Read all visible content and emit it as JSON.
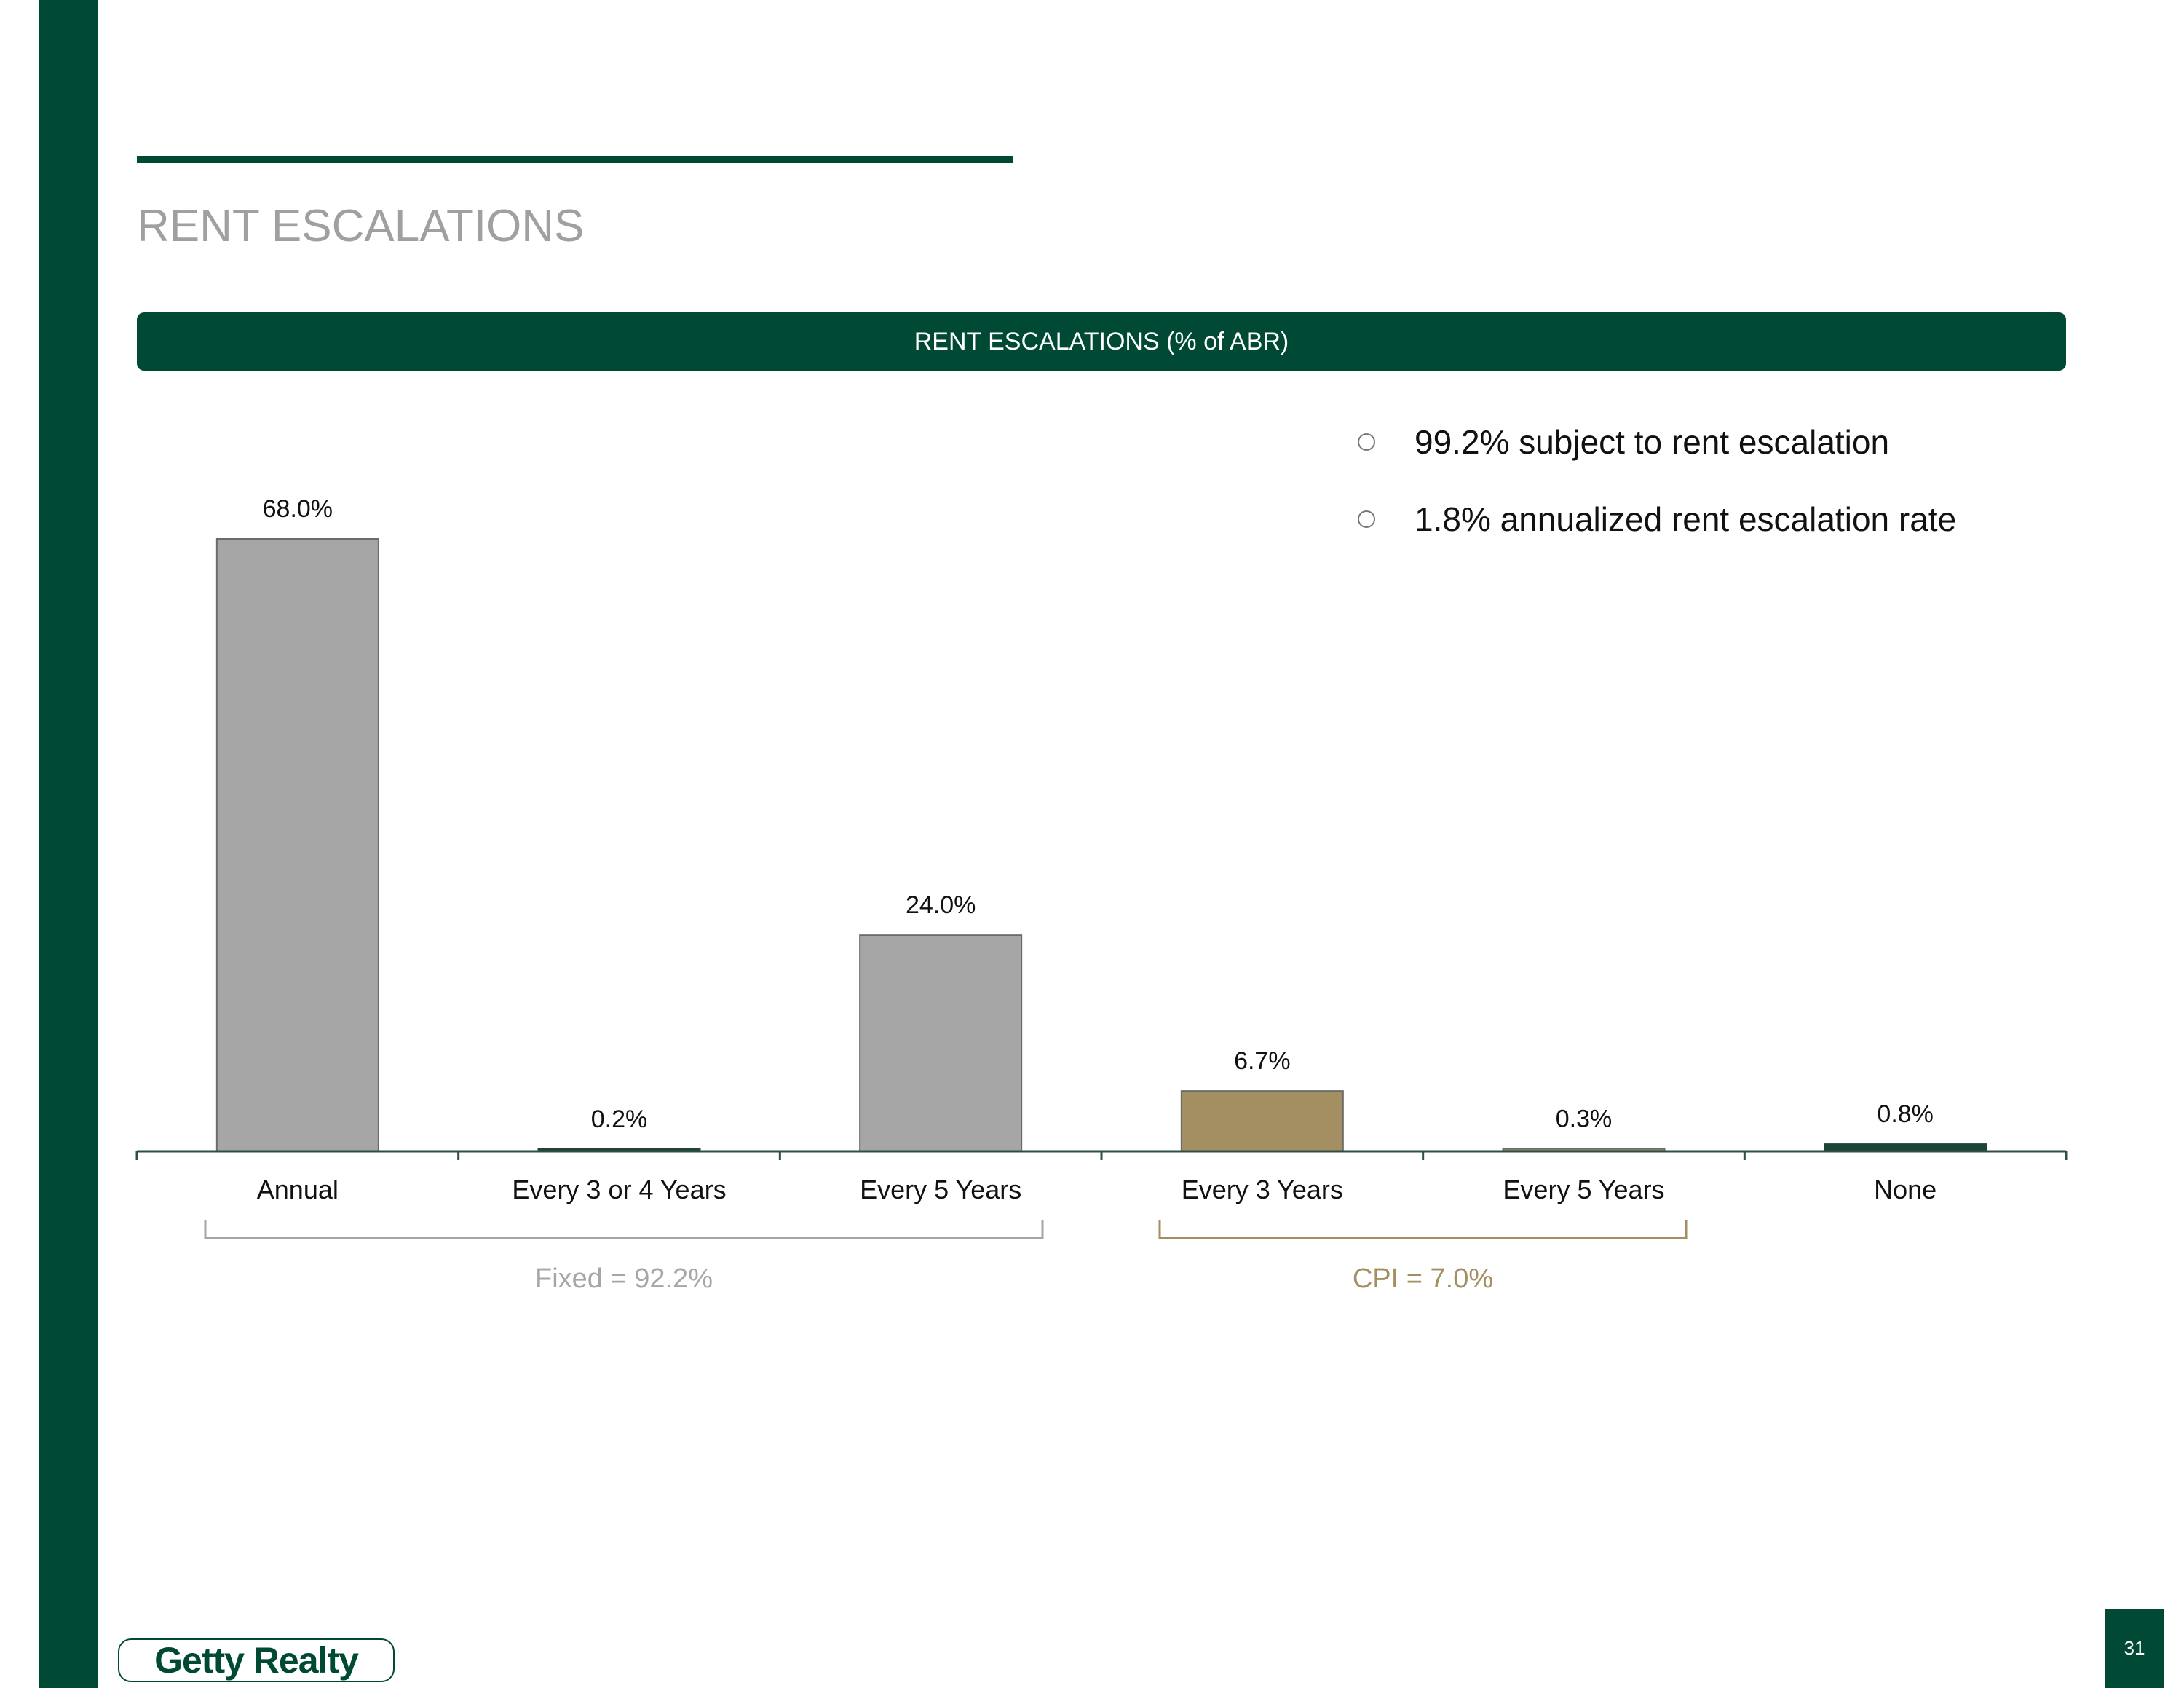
{
  "page": {
    "title": "RENT ESCALATIONS",
    "page_number": "31",
    "logo_text": "Getty Realty"
  },
  "banner": {
    "label": "RENT ESCALATIONS (% of ABR)"
  },
  "bullets": [
    "99.2% subject to rent escalation",
    "1.8% annualized rent escalation rate"
  ],
  "colors": {
    "brand_green": "#004a35",
    "fixed_gray": "#a6a6a6",
    "cpi_tan": "#a38f62",
    "none_dark": "#1d4436"
  },
  "chart_data": {
    "type": "bar",
    "title": "RENT ESCALATIONS (% of ABR)",
    "categories": [
      "Annual",
      "Every 3 or 4 Years",
      "Every 5 Years",
      "Every 3 Years",
      "Every 5 Years",
      "None"
    ],
    "values": [
      68.0,
      0.2,
      24.0,
      6.7,
      0.3,
      0.8
    ],
    "data_labels": [
      "68.0%",
      "0.2%",
      "24.0%",
      "6.7%",
      "0.3%",
      "0.8%"
    ],
    "bar_colors": [
      "#a6a6a6",
      "#1d4436",
      "#a6a6a6",
      "#a38f62",
      "#8f8a6a",
      "#1d4436"
    ],
    "ylim": [
      0,
      68
    ],
    "grid": false,
    "groups": [
      {
        "label": "Fixed = 92.2%",
        "color": "#a6a6a6"
      },
      {
        "label": "CPI = 7.0%",
        "color": "#a38f62"
      }
    ]
  }
}
